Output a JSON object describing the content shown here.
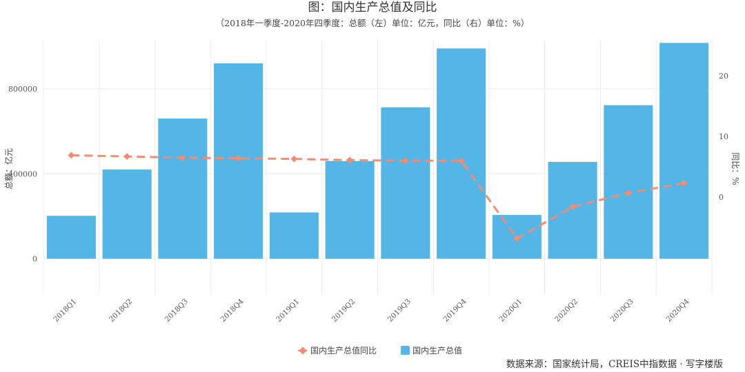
{
  "chart_data": {
    "type": "bar",
    "title": "图：国内生产总值及同比",
    "subtitle": "（2018年一季度-2020年四季度：总额（左）单位：亿元，同比（右）单位：%）",
    "categories": [
      "2018Q1",
      "2018Q2",
      "2018Q3",
      "2018Q4",
      "2019Q1",
      "2019Q2",
      "2019Q3",
      "2019Q4",
      "2020Q1",
      "2020Q2",
      "2020Q3",
      "2020Q4"
    ],
    "ylabel": "总额：亿元",
    "y2label": "同比：%",
    "ylim": [
      -170000,
      1030000
    ],
    "y2lim": [
      -16.1,
      25.9
    ],
    "yticks": [
      0,
      400000,
      800000
    ],
    "y2ticks": [
      0,
      10,
      20
    ],
    "series": [
      {
        "name": "国内生产总值同比",
        "kind": "line",
        "axis": "right",
        "color": "#f08d72",
        "values": [
          6.9,
          6.7,
          6.5,
          6.4,
          6.3,
          6.1,
          6.0,
          6.0,
          -6.8,
          -1.6,
          0.7,
          2.3
        ]
      },
      {
        "name": "国内生产总值",
        "kind": "bar",
        "axis": "left",
        "color": "#53b6e7",
        "values": [
          202000,
          420000,
          660000,
          920000,
          218000,
          460000,
          713000,
          990000,
          206000,
          456000,
          723000,
          1016000
        ]
      }
    ],
    "grid": true,
    "legend_position": "bottom-center"
  },
  "source": "数据来源：国家统计局，CREIS中指数据 · 写字楼版"
}
